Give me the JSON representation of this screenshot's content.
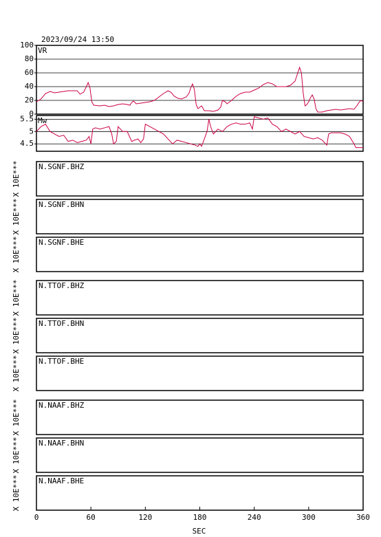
{
  "title": "2023/09/24 13:50",
  "chart_data": [
    {
      "type": "line",
      "ylabel": "VR",
      "color": "#cc0044",
      "grid": true,
      "ylim": [
        0,
        100
      ],
      "yticks": [
        0,
        20,
        40,
        60,
        80,
        100
      ],
      "x": [
        0,
        5,
        10,
        15,
        20,
        25,
        30,
        35,
        40,
        45,
        48,
        52,
        55,
        57,
        59,
        61,
        63,
        70,
        75,
        80,
        85,
        90,
        95,
        100,
        103,
        105,
        107,
        110,
        115,
        120,
        125,
        130,
        135,
        140,
        145,
        148,
        152,
        156,
        160,
        165,
        168,
        170,
        172,
        174,
        176,
        178,
        180,
        182,
        185,
        190,
        195,
        200,
        203,
        205,
        208,
        210,
        215,
        220,
        225,
        230,
        235,
        240,
        245,
        250,
        255,
        260,
        265,
        270,
        275,
        280,
        285,
        288,
        290,
        292,
        294,
        296,
        298,
        300,
        302,
        304,
        306,
        308,
        310,
        315,
        320,
        325,
        330,
        335,
        340,
        345,
        350,
        353,
        356,
        358,
        360
      ],
      "values": [
        18,
        22,
        30,
        33,
        31,
        32,
        33,
        34,
        34,
        34,
        29,
        32,
        40,
        46,
        38,
        18,
        13,
        12,
        13,
        11,
        12,
        14,
        15,
        14,
        13,
        17,
        19,
        15,
        16,
        17,
        18,
        20,
        25,
        30,
        34,
        32,
        26,
        23,
        22,
        25,
        30,
        38,
        44,
        36,
        14,
        8,
        10,
        12,
        5,
        5,
        4,
        6,
        10,
        20,
        18,
        15,
        20,
        26,
        30,
        32,
        32,
        35,
        38,
        43,
        46,
        44,
        40,
        40,
        40,
        42,
        48,
        60,
        68,
        60,
        30,
        12,
        14,
        18,
        24,
        28,
        22,
        8,
        3,
        3,
        5,
        6,
        7,
        6,
        7,
        8,
        7,
        12,
        18,
        20,
        18
      ]
    },
    {
      "type": "line",
      "ylabel": "Mw",
      "color": "#cc0044",
      "grid": true,
      "ylim": [
        4.2,
        5.65
      ],
      "yticks": [
        4.5,
        5.0,
        5.5
      ],
      "x": [
        0,
        5,
        10,
        15,
        20,
        25,
        30,
        35,
        40,
        45,
        50,
        55,
        58,
        60,
        62,
        65,
        70,
        75,
        80,
        83,
        85,
        88,
        90,
        95,
        100,
        105,
        108,
        112,
        115,
        118,
        120,
        125,
        130,
        135,
        140,
        145,
        150,
        155,
        160,
        165,
        170,
        175,
        178,
        180,
        182,
        185,
        188,
        190,
        192,
        195,
        200,
        205,
        210,
        215,
        220,
        225,
        230,
        235,
        238,
        240,
        245,
        250,
        255,
        260,
        265,
        270,
        275,
        280,
        285,
        290,
        295,
        300,
        305,
        310,
        315,
        320,
        322,
        325,
        330,
        335,
        340,
        345,
        350,
        352,
        355,
        360
      ],
      "values": [
        5.0,
        5.2,
        5.3,
        5.0,
        4.9,
        4.8,
        4.85,
        4.6,
        4.65,
        4.55,
        4.6,
        4.65,
        4.8,
        4.5,
        5.1,
        5.15,
        5.1,
        5.15,
        5.2,
        4.9,
        4.5,
        4.6,
        5.2,
        5.0,
        5.0,
        4.6,
        4.65,
        4.7,
        4.55,
        4.7,
        5.3,
        5.2,
        5.1,
        5.0,
        4.9,
        4.7,
        4.5,
        4.65,
        4.6,
        4.55,
        4.5,
        4.45,
        4.4,
        4.5,
        4.4,
        4.7,
        5.0,
        5.5,
        5.2,
        4.9,
        5.1,
        5.0,
        5.2,
        5.3,
        5.35,
        5.3,
        5.3,
        5.35,
        5.1,
        5.6,
        5.55,
        5.5,
        5.55,
        5.3,
        5.2,
        5.0,
        5.1,
        5.0,
        4.9,
        5.0,
        4.8,
        4.75,
        4.7,
        4.75,
        4.65,
        4.45,
        4.9,
        4.95,
        4.95,
        4.95,
        4.9,
        4.8,
        4.5,
        4.35,
        4.35,
        4.35
      ]
    },
    {
      "type": "waveform",
      "title": "N.SGNF.BHZ",
      "ylabel": "X 10E***"
    },
    {
      "type": "waveform",
      "title": "N.SGNF.BHN",
      "ylabel": "X 10E***"
    },
    {
      "type": "waveform",
      "title": "N.SGNF.BHE",
      "ylabel": "X 10E***"
    },
    {
      "type": "waveform",
      "title": "N.TTOF.BHZ",
      "ylabel": "X 10E***"
    },
    {
      "type": "waveform",
      "title": "N.TTOF.BHN",
      "ylabel": "X 10E***"
    },
    {
      "type": "waveform",
      "title": "N.TTOF.BHE",
      "ylabel": "X 10E***"
    },
    {
      "type": "waveform",
      "title": "N.NAAF.BHZ",
      "ylabel": "X 10E***"
    },
    {
      "type": "waveform",
      "title": "N.NAAF.BHN",
      "ylabel": "X 10E***"
    },
    {
      "type": "waveform",
      "title": "N.NAAF.BHE",
      "ylabel": "X 10E***",
      "xlim": [
        0,
        360
      ],
      "xticks": [
        0,
        60,
        120,
        180,
        240,
        300,
        360
      ],
      "xlabel": "SEC"
    }
  ]
}
